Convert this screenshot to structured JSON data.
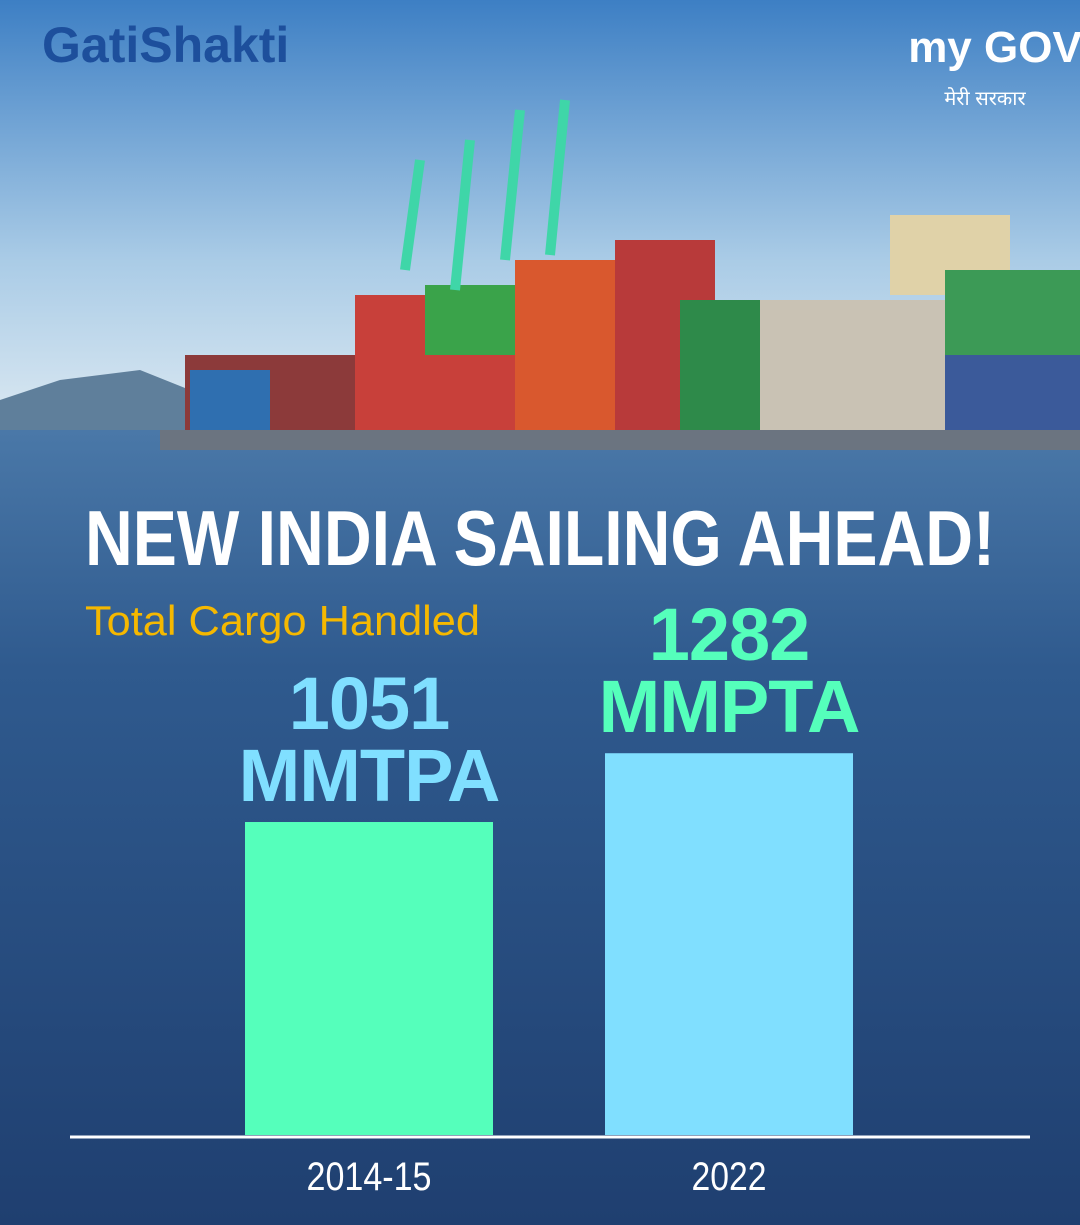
{
  "logos": {
    "brand": "GatiShakti",
    "partner": "my GOV",
    "partner_tagline": "मेरी सरकार"
  },
  "chart_data": {
    "type": "bar",
    "title": "NEW INDIA SAILING AHEAD!",
    "subtitle": "Total Cargo Handled",
    "categories": [
      "2014-15",
      "2022"
    ],
    "values": [
      1051,
      1282
    ],
    "value_labels": [
      "1051 MMTPA",
      "1282 MMPTA"
    ],
    "colors": [
      "#55ffbb",
      "#80dfff"
    ],
    "value_label_colors": [
      "#80dfff",
      "#55ffbb"
    ]
  }
}
